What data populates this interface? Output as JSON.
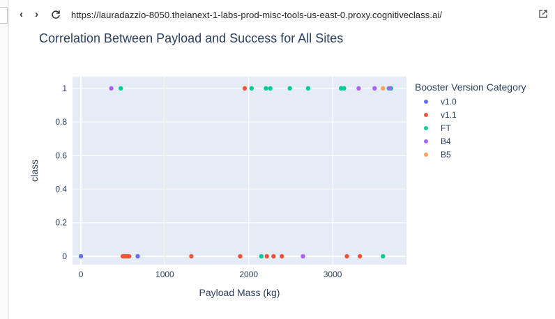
{
  "browser": {
    "url": "https://lauradazzio-8050.theianext-1-labs-prod-misc-tools-us-east-0.proxy.cognitiveclass.ai/",
    "back_icon": "chevron-left-icon",
    "forward_icon": "chevron-right-icon",
    "reload_icon": "reload-icon",
    "open_external_icon": "open-external-icon"
  },
  "chart_data": {
    "type": "scatter",
    "title": "Correlation Between Payload and Success for All Sites",
    "xlabel": "Payload Mass (kg)",
    "ylabel": "class",
    "xlim": [
      -100,
      3880
    ],
    "ylim": [
      -0.05,
      1.07
    ],
    "xticks": [
      0,
      1000,
      2000,
      3000
    ],
    "yticks": [
      0,
      0.2,
      0.4,
      0.6,
      0.8,
      1
    ],
    "ytick_labels": [
      "0",
      "0.2",
      "0.4",
      "0.6",
      "0.8",
      "1"
    ],
    "xtick_labels": [
      "0",
      "1000",
      "2000",
      "3000"
    ],
    "grid": true,
    "legend_title": "Booster Version Category",
    "legend_placement": "right",
    "series": [
      {
        "name": "v1.0",
        "color": "#636efa",
        "points": [
          [
            0,
            0
          ],
          [
            677,
            0
          ]
        ]
      },
      {
        "name": "v1.1",
        "color": "#ef553b",
        "points": [
          [
            500,
            0
          ],
          [
            525,
            0
          ],
          [
            550,
            0
          ],
          [
            575,
            0
          ],
          [
            1316,
            0
          ],
          [
            1898,
            0
          ],
          [
            1952,
            1
          ],
          [
            2216,
            0
          ],
          [
            2296,
            0
          ],
          [
            2395,
            0
          ],
          [
            3170,
            0
          ],
          [
            3325,
            0
          ]
        ]
      },
      {
        "name": "FT",
        "color": "#00cc96",
        "points": [
          [
            475,
            1
          ],
          [
            2034,
            1
          ],
          [
            2205,
            1
          ],
          [
            2257,
            1
          ],
          [
            2490,
            1
          ],
          [
            2708,
            1
          ],
          [
            3100,
            1
          ],
          [
            3136,
            1
          ],
          [
            2150,
            0
          ],
          [
            3600,
            0
          ],
          [
            3669,
            1
          ],
          [
            3696,
            1
          ]
        ]
      },
      {
        "name": "B4",
        "color": "#ab63fa",
        "points": [
          [
            362,
            1
          ],
          [
            3310,
            1
          ],
          [
            3500,
            1
          ],
          [
            3681,
            1
          ],
          [
            2647,
            0
          ]
        ]
      },
      {
        "name": "B5",
        "color": "#ffa15a",
        "points": [
          [
            3600,
            1
          ]
        ]
      }
    ]
  }
}
